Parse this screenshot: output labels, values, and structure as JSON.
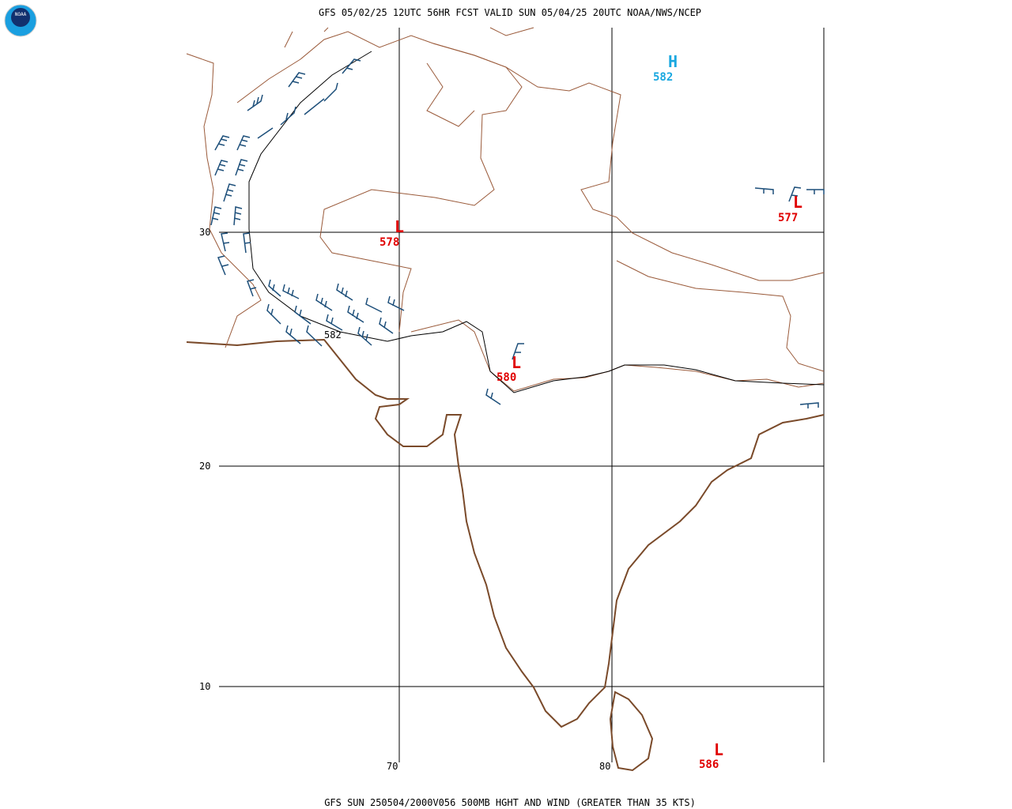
{
  "header": {
    "title": "GFS 05/02/25 12UTC 56HR FCST VALID SUN 05/04/25 20UTC NOAA/NWS/NCEP",
    "logo": "NOAA"
  },
  "footer": {
    "caption": "GFS SUN 250504/2000V056 500MB HGHT AND WIND (GREATER THAN 35 KTS)"
  },
  "grid": {
    "lat_labels": [
      "30",
      "20",
      "10"
    ],
    "lon_labels": [
      "70",
      "80"
    ]
  },
  "centers": [
    {
      "symbol": "H",
      "value": "582"
    },
    {
      "symbol": "L",
      "value": "578"
    },
    {
      "symbol": "L",
      "value": "577"
    },
    {
      "symbol": "L",
      "value": "580"
    },
    {
      "symbol": "L",
      "value": "586"
    }
  ],
  "contour_labels": [
    "582"
  ]
}
